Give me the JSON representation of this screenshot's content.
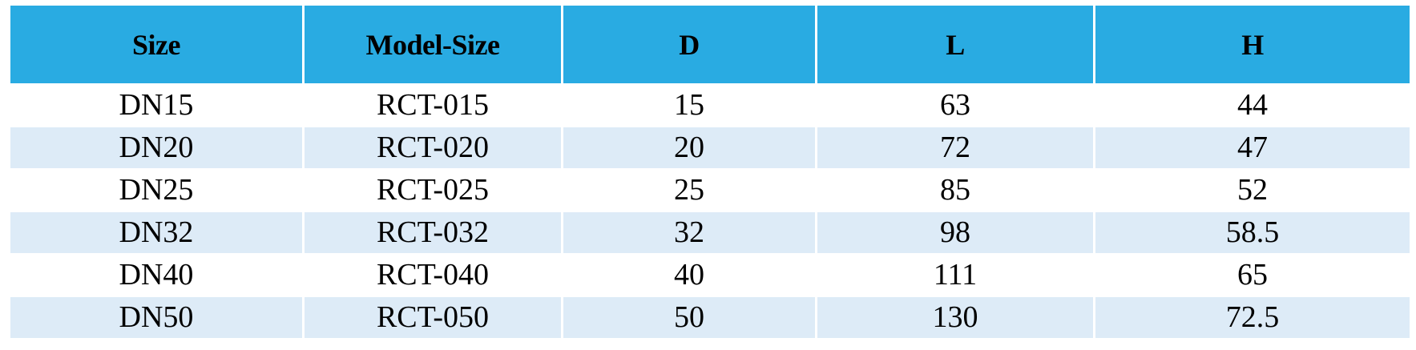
{
  "table": {
    "headers": [
      "Size",
      "Model-Size",
      "D",
      "L",
      "H"
    ],
    "rows": [
      [
        "DN15",
        "RCT-015",
        "15",
        "63",
        "44"
      ],
      [
        "DN20",
        "RCT-020",
        "20",
        "72",
        "47"
      ],
      [
        "DN25",
        "RCT-025",
        "25",
        "85",
        "52"
      ],
      [
        "DN32",
        "RCT-032",
        "32",
        "98",
        "58.5"
      ],
      [
        "DN40",
        "RCT-040",
        "40",
        "111",
        "65"
      ],
      [
        "DN50",
        "RCT-050",
        "50",
        "130",
        "72.5"
      ]
    ]
  },
  "colors": {
    "header_bg": "#29abe2",
    "alt_row_bg": "#ddebf7"
  }
}
